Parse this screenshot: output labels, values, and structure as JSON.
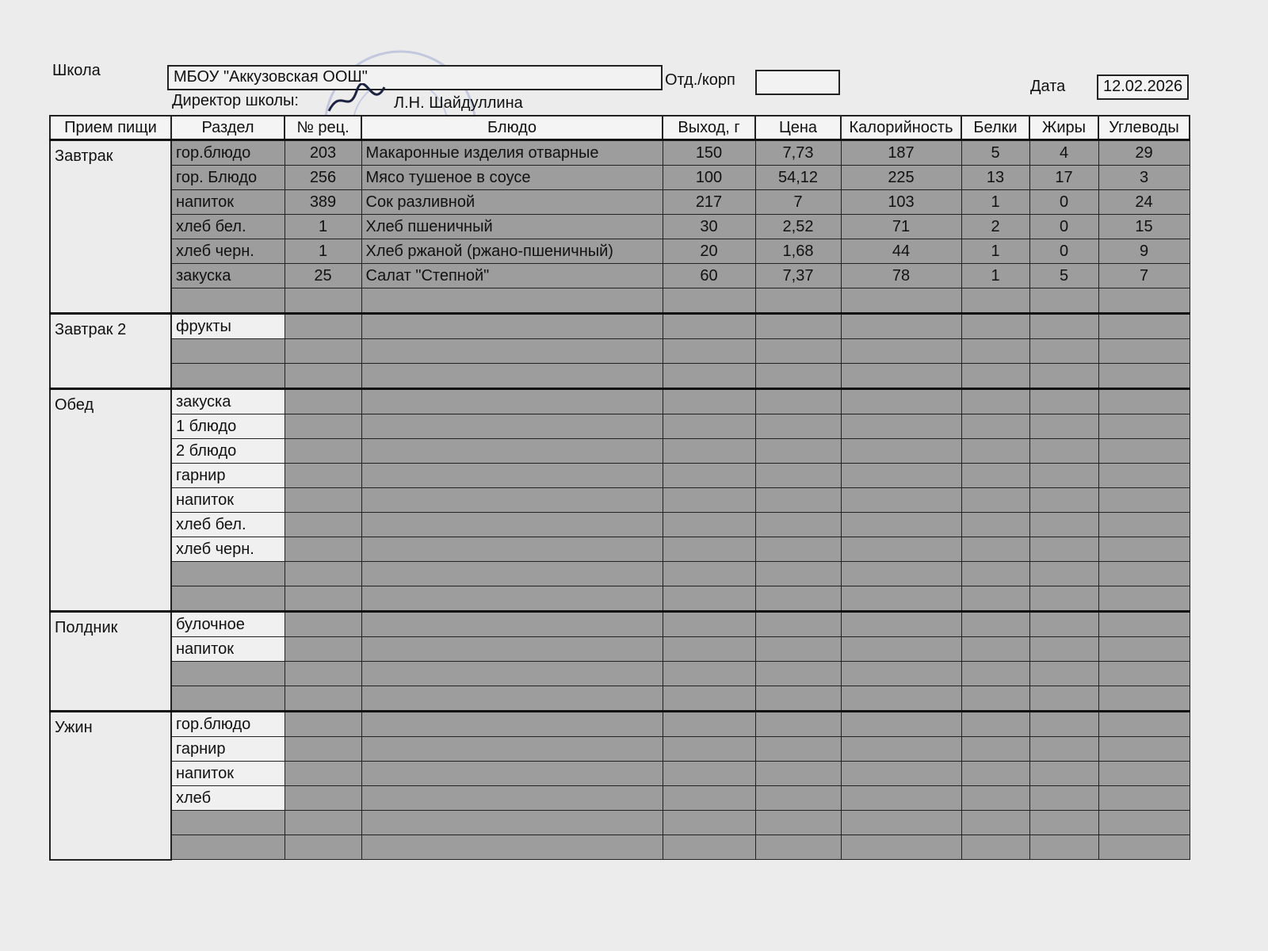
{
  "header": {
    "school_label": "Школа",
    "school": "МБОУ \"Аккузовская ООШ\"",
    "dept_label": "Отд./корп",
    "date_label": "Дата",
    "date": "12.02.2026",
    "director_label": "Директор школы:",
    "director": "Л.Н. Шайдуллина"
  },
  "table": {
    "columns": [
      "Прием пищи",
      "Раздел",
      "№ рец.",
      "Блюдо",
      "Выход, г",
      "Цена",
      "Калорийность",
      "Белки",
      "Жиры",
      "Углеводы"
    ],
    "groups": [
      {
        "meal": "Завтрак",
        "rows": [
          [
            "гор.блюдо",
            "203",
            "Макаронные изделия отварные",
            "150",
            "7,73",
            "187",
            "5",
            "4",
            "29"
          ],
          [
            "гор. Блюдо",
            "256",
            "Мясо тушеное в соусе",
            "100",
            "54,12",
            "225",
            "13",
            "17",
            "3"
          ],
          [
            "напиток",
            "389",
            "Сок разливной",
            "217",
            "7",
            "103",
            "1",
            "0",
            "24"
          ],
          [
            "хлеб бел.",
            "1",
            "Хлеб пшеничный",
            "30",
            "2,52",
            "71",
            "2",
            "0",
            "15"
          ],
          [
            "хлеб черн.",
            "1",
            "Хлеб ржаной (ржано-пшеничный)",
            "20",
            "1,68",
            "44",
            "1",
            "0",
            "9"
          ],
          [
            "закуска",
            "25",
            "Салат \"Степной\"",
            "60",
            "7,37",
            "78",
            "1",
            "5",
            "7"
          ]
        ]
      },
      {
        "meal": "Завтрак 2",
        "rows": [
          [
            "фрукты"
          ]
        ]
      },
      {
        "meal": "Обед",
        "rows": [
          [
            "закуска"
          ],
          [
            "1 блюдо"
          ],
          [
            "2 блюдо"
          ],
          [
            "гарнир"
          ],
          [
            "напиток"
          ],
          [
            "хлеб бел."
          ],
          [
            "хлеб черн."
          ]
        ]
      },
      {
        "meal": "Полдник",
        "rows": [
          [
            "булочное"
          ],
          [
            "напиток"
          ]
        ]
      },
      {
        "meal": "Ужин",
        "rows": [
          [
            "гор.блюдо"
          ],
          [
            "гарнир"
          ],
          [
            "напиток"
          ],
          [
            "хлеб"
          ]
        ]
      }
    ]
  }
}
